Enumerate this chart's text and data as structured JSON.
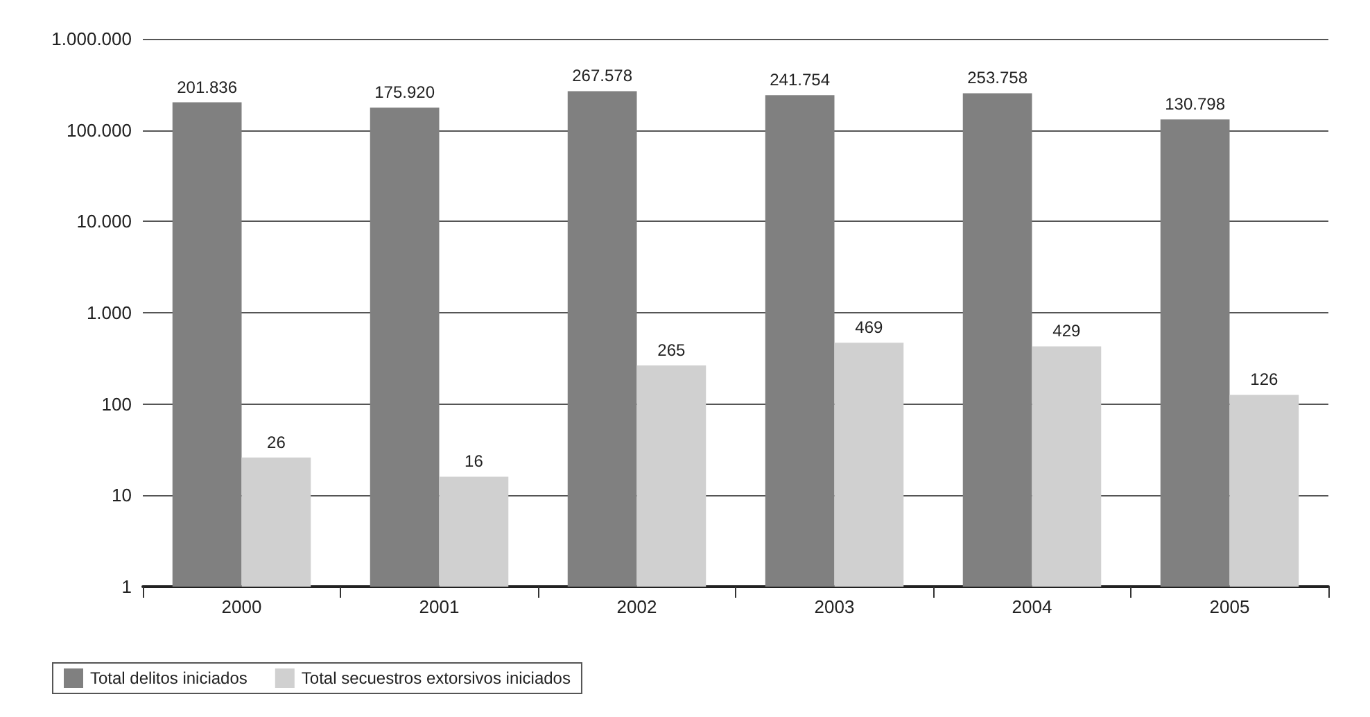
{
  "chart_data": {
    "type": "bar",
    "categories": [
      "2000",
      "2001",
      "2002",
      "2003",
      "2004",
      "2005"
    ],
    "series": [
      {
        "name": "Total delitos iniciados",
        "color": "#808080",
        "values": [
          201836,
          175920,
          267578,
          241754,
          253758,
          130798
        ],
        "value_labels": [
          "201.836",
          "175.920",
          "267.578",
          "241.754",
          "253.758",
          "130.798"
        ]
      },
      {
        "name": "Total secuestros extorsivos iniciados",
        "color": "#d0d0d0",
        "values": [
          26,
          16,
          265,
          469,
          429,
          126
        ],
        "value_labels": [
          "26",
          "16",
          "265",
          "469",
          "429",
          "126"
        ]
      }
    ],
    "log": "y",
    "ylim": [
      1,
      1000000
    ],
    "yticks": [
      1,
      10,
      100,
      {
        "value": 1000,
        "label": "1.000"
      },
      {
        "value": 10000,
        "label": "10.000"
      },
      {
        "value": 100000,
        "label": "100.000"
      },
      {
        "value": 1000000,
        "label": "1.000.000"
      }
    ],
    "grid": "y",
    "legend": "bottom left"
  }
}
